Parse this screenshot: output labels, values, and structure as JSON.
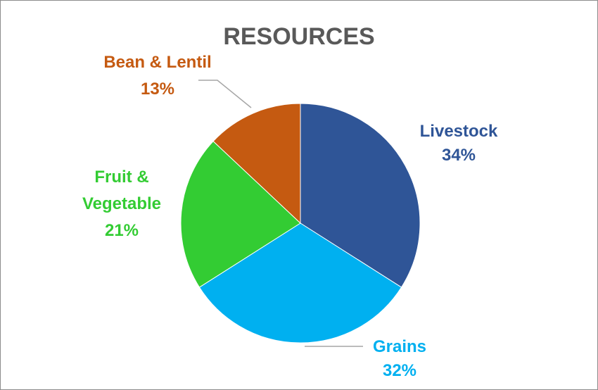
{
  "chart_data": {
    "type": "pie",
    "title": "RESOURCES",
    "start_angle_deg": 0,
    "direction": "clockwise",
    "slices": [
      {
        "label_lines": [
          "Livestock"
        ],
        "percent_label": "34%",
        "value": 34,
        "color": "#2F5597"
      },
      {
        "label_lines": [
          "Grains"
        ],
        "percent_label": "32%",
        "value": 32,
        "color": "#00B0F0"
      },
      {
        "label_lines": [
          "Fruit &",
          "Vegetable"
        ],
        "percent_label": "21%",
        "value": 21,
        "color": "#33CC33"
      },
      {
        "label_lines": [
          "Bean & Lentil"
        ],
        "percent_label": "13%",
        "value": 13,
        "color": "#C55A11"
      }
    ],
    "legend": "none"
  }
}
